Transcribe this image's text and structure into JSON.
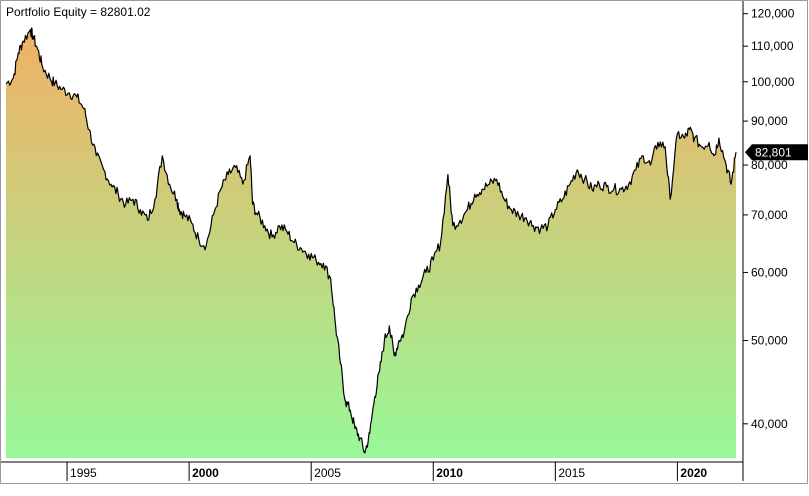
{
  "chart_data": {
    "type": "area",
    "title": "Portfolio Equity = 82801.02",
    "xlabel": "",
    "ylabel": "",
    "y_scale": "log",
    "ylim": [
      36500,
      122500
    ],
    "x_range": [
      1992.0,
      2021.9
    ],
    "grid": false,
    "legend": "none",
    "last_value_label": "82,801",
    "last_value": 82801,
    "x_ticks": [
      {
        "label": "1995",
        "value": 1994.5,
        "bold": false
      },
      {
        "label": "2000",
        "value": 1999.5,
        "bold": true
      },
      {
        "label": "2005",
        "value": 2004.5,
        "bold": false
      },
      {
        "label": "2010",
        "value": 2009.5,
        "bold": true
      },
      {
        "label": "2015",
        "value": 2014.5,
        "bold": false
      },
      {
        "label": "2020",
        "value": 2019.5,
        "bold": true
      }
    ],
    "y_ticks": [
      {
        "label": "40,000",
        "value": 40000
      },
      {
        "label": "50,000",
        "value": 50000
      },
      {
        "label": "60,000",
        "value": 60000
      },
      {
        "label": "70,000",
        "value": 70000
      },
      {
        "label": "80,000",
        "value": 80000
      },
      {
        "label": "90,000",
        "value": 90000
      },
      {
        "label": "100,000",
        "value": 100000
      },
      {
        "label": "110,000",
        "value": 110000
      },
      {
        "label": "120,000",
        "value": 120000
      }
    ],
    "colors": {
      "top": "#f2b066",
      "bottom": "#98f898",
      "line": "#000000",
      "label_bg": "#000000",
      "label_text": "#ffffff",
      "axis": "#000000"
    },
    "series": [
      {
        "x": [
          1992.0,
          1992.3,
          1992.5,
          1992.7,
          1993.0,
          1993.1,
          1993.3,
          1993.5,
          1993.8,
          1994.0,
          1994.3,
          1994.6,
          1994.9,
          1995.2,
          1995.4,
          1995.7,
          1996.0,
          1996.3,
          1996.6,
          1996.9,
          1997.2,
          1997.5,
          1997.8,
          1998.1,
          1998.4,
          1998.7,
          1999.0,
          1999.1,
          1999.3,
          1999.6,
          1999.9,
          2000.2,
          2000.5,
          2000.8,
          2001.1,
          2001.4,
          2001.7,
          2002.0,
          2002.1,
          2002.3,
          2002.6,
          2002.9,
          2003.2,
          2003.5,
          2003.8,
          2004.1,
          2004.4,
          2004.7,
          2005.0,
          2005.3,
          2005.5,
          2005.7,
          2005.9,
          2006.1,
          2006.3,
          2006.5,
          2006.7,
          2006.9,
          2007.1,
          2007.3,
          2007.5,
          2007.7,
          2007.9,
          2008.1,
          2008.3,
          2008.6,
          2008.9,
          2009.2,
          2009.5,
          2009.8,
          2010.1,
          2010.3,
          2010.6,
          2010.9,
          2011.2,
          2011.5,
          2011.8,
          2012.1,
          2012.4,
          2012.7,
          2013.0,
          2013.3,
          2013.6,
          2013.9,
          2014.2,
          2014.5,
          2014.8,
          2015.1,
          2015.4,
          2015.7,
          2016.0,
          2016.3,
          2016.6,
          2016.9,
          2017.2,
          2017.5,
          2017.8,
          2018.1,
          2018.4,
          2018.7,
          2019.0,
          2019.2,
          2019.5,
          2019.8,
          2020.0,
          2020.2,
          2020.5,
          2020.8,
          2021.0,
          2021.2,
          2021.5,
          2021.7,
          2021.9
        ],
        "y": [
          99500,
          101000,
          108000,
          111500,
          115000,
          113000,
          109000,
          104000,
          101000,
          99500,
          98000,
          97000,
          96000,
          93000,
          88000,
          82000,
          79000,
          76000,
          74000,
          72000,
          73000,
          71000,
          69000,
          73000,
          82000,
          76000,
          73000,
          71000,
          70000,
          68500,
          65500,
          64500,
          70000,
          75000,
          78000,
          79500,
          76000,
          82000,
          72000,
          70000,
          68000,
          66000,
          68000,
          67000,
          65000,
          64000,
          63000,
          62000,
          61500,
          59000,
          52000,
          47000,
          42500,
          41500,
          39500,
          38500,
          37000,
          39000,
          43000,
          46000,
          50000,
          52000,
          48000,
          50000,
          51000,
          56000,
          58000,
          60000,
          62000,
          65000,
          78000,
          68000,
          69000,
          71000,
          74000,
          75000,
          76000,
          77000,
          73000,
          71000,
          70000,
          69500,
          68000,
          67500,
          68000,
          71000,
          73000,
          76000,
          79000,
          77000,
          75000,
          76000,
          75500,
          75000,
          75000,
          76000,
          79000,
          82000,
          80000,
          85000,
          84000,
          73000,
          87000,
          86000,
          88000,
          86000,
          84000,
          85000,
          82000,
          86000,
          80000,
          76000,
          82801
        ]
      }
    ]
  }
}
